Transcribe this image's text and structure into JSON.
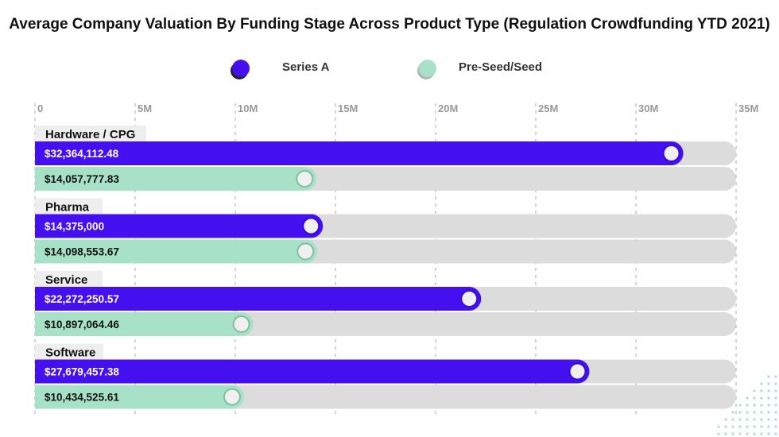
{
  "chart_data": {
    "type": "bar",
    "title": "Average Company Valuation By Funding Stage Across Product Type (Regulation Crowdfunding YTD 2021)",
    "orientation": "horizontal",
    "categories": [
      "Hardware / CPG",
      "Pharma",
      "Service",
      "Software"
    ],
    "series": [
      {
        "name": "Series A",
        "color": "#4410f0",
        "values": [
          32364112.48,
          14375000,
          22272250.57,
          27679457.38
        ],
        "labels": [
          "$32,364,112.48",
          "$14,375,000",
          "$22,272,250.57",
          "$27,679,457.38"
        ]
      },
      {
        "name": "Pre-Seed/Seed",
        "color": "#a7e2c8",
        "values": [
          14057777.83,
          14098553.67,
          10897064.46,
          10434525.61
        ],
        "labels": [
          "$14,057,777.83",
          "$14,098,553.67",
          "$10,897,064.46",
          "$10,434,525.61"
        ]
      }
    ],
    "xlim": [
      0,
      35000000
    ],
    "x_ticks": [
      0,
      5000000,
      10000000,
      15000000,
      20000000,
      25000000,
      30000000,
      35000000
    ],
    "x_tick_labels": [
      "0",
      "5M",
      "10M",
      "15M",
      "20M",
      "25M",
      "30M",
      "35M"
    ],
    "grid": "dashed vertical",
    "legend_position": "top-center",
    "track_color": "#dcdcdc"
  }
}
